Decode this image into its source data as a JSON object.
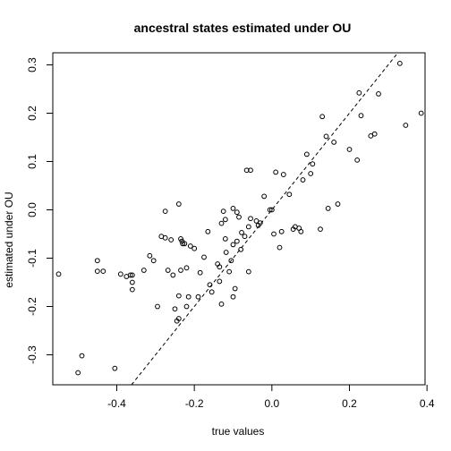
{
  "chart_data": {
    "type": "scatter",
    "title": "ancestral states estimated under OU",
    "xlabel": "true values",
    "ylabel": "estimated under OU",
    "xlim": [
      -0.565,
      0.395
    ],
    "ylim": [
      -0.362,
      0.325
    ],
    "xticks": [
      "-0.4",
      "-0.2",
      "0.0",
      "0.2",
      "0.4"
    ],
    "xtick_values": [
      -0.4,
      -0.2,
      0.0,
      0.2,
      0.4
    ],
    "yticks": [
      "-0.3",
      "-0.2",
      "-0.1",
      "0.0",
      "0.1",
      "0.2",
      "0.3"
    ],
    "ytick_values": [
      -0.3,
      -0.2,
      -0.1,
      0.0,
      0.1,
      0.2,
      0.3
    ],
    "grid": false,
    "reference_line": {
      "style": "dashed",
      "slope": 1,
      "intercept": 0
    },
    "points": [
      [
        -0.55,
        -0.133
      ],
      [
        -0.49,
        -0.302
      ],
      [
        -0.5,
        -0.337
      ],
      [
        -0.405,
        -0.328
      ],
      [
        -0.45,
        -0.105
      ],
      [
        -0.45,
        -0.127
      ],
      [
        -0.435,
        -0.127
      ],
      [
        -0.39,
        -0.133
      ],
      [
        -0.375,
        -0.138
      ],
      [
        -0.365,
        -0.135
      ],
      [
        -0.36,
        -0.15
      ],
      [
        -0.36,
        -0.165
      ],
      [
        -0.36,
        -0.135
      ],
      [
        -0.33,
        -0.125
      ],
      [
        -0.315,
        -0.095
      ],
      [
        -0.305,
        -0.105
      ],
      [
        -0.295,
        -0.2
      ],
      [
        -0.285,
        -0.055
      ],
      [
        -0.275,
        -0.058
      ],
      [
        -0.275,
        -0.003
      ],
      [
        -0.268,
        -0.125
      ],
      [
        -0.26,
        -0.062
      ],
      [
        -0.255,
        -0.135
      ],
      [
        -0.25,
        -0.205
      ],
      [
        -0.245,
        -0.23
      ],
      [
        -0.24,
        -0.225
      ],
      [
        -0.24,
        0.012
      ],
      [
        -0.24,
        -0.178
      ],
      [
        -0.235,
        -0.125
      ],
      [
        -0.235,
        -0.06
      ],
      [
        -0.232,
        -0.065
      ],
      [
        -0.23,
        -0.07
      ],
      [
        -0.225,
        -0.07
      ],
      [
        -0.22,
        -0.12
      ],
      [
        -0.22,
        -0.2
      ],
      [
        -0.215,
        -0.18
      ],
      [
        -0.21,
        -0.075
      ],
      [
        -0.2,
        -0.08
      ],
      [
        -0.19,
        -0.18
      ],
      [
        -0.185,
        -0.13
      ],
      [
        -0.175,
        -0.098
      ],
      [
        -0.165,
        -0.045
      ],
      [
        -0.16,
        -0.155
      ],
      [
        -0.155,
        -0.17
      ],
      [
        -0.14,
        -0.112
      ],
      [
        -0.135,
        -0.118
      ],
      [
        -0.135,
        -0.148
      ],
      [
        -0.13,
        -0.028
      ],
      [
        -0.13,
        -0.195
      ],
      [
        -0.125,
        -0.003
      ],
      [
        -0.12,
        -0.02
      ],
      [
        -0.12,
        -0.06
      ],
      [
        -0.118,
        -0.088
      ],
      [
        -0.11,
        -0.128
      ],
      [
        -0.105,
        -0.105
      ],
      [
        -0.1,
        -0.072
      ],
      [
        -0.095,
        -0.163
      ],
      [
        -0.09,
        -0.065
      ],
      [
        -0.1,
        -0.18
      ],
      [
        -0.1,
        0.003
      ],
      [
        -0.09,
        -0.005
      ],
      [
        -0.085,
        -0.015
      ],
      [
        -0.08,
        -0.082
      ],
      [
        -0.078,
        -0.047
      ],
      [
        -0.07,
        -0.055
      ],
      [
        -0.06,
        -0.035
      ],
      [
        -0.055,
        0.082
      ],
      [
        -0.065,
        0.082
      ],
      [
        -0.06,
        -0.128
      ],
      [
        -0.055,
        -0.018
      ],
      [
        -0.04,
        -0.023
      ],
      [
        -0.035,
        -0.032
      ],
      [
        -0.03,
        -0.027
      ],
      [
        -0.02,
        0.028
      ],
      [
        -0.005,
        0.0
      ],
      [
        0.0,
        0.0
      ],
      [
        0.005,
        -0.05
      ],
      [
        0.01,
        0.078
      ],
      [
        0.025,
        -0.045
      ],
      [
        0.02,
        -0.078
      ],
      [
        0.03,
        0.073
      ],
      [
        0.045,
        0.032
      ],
      [
        0.055,
        -0.04
      ],
      [
        0.06,
        -0.035
      ],
      [
        0.07,
        -0.038
      ],
      [
        0.075,
        -0.045
      ],
      [
        0.08,
        0.062
      ],
      [
        0.09,
        0.115
      ],
      [
        0.1,
        0.075
      ],
      [
        0.105,
        0.095
      ],
      [
        0.125,
        -0.04
      ],
      [
        0.13,
        0.193
      ],
      [
        0.14,
        0.152
      ],
      [
        0.145,
        0.003
      ],
      [
        0.16,
        0.14
      ],
      [
        0.17,
        0.012
      ],
      [
        0.2,
        0.125
      ],
      [
        0.22,
        0.103
      ],
      [
        0.225,
        0.242
      ],
      [
        0.23,
        0.195
      ],
      [
        0.255,
        0.153
      ],
      [
        0.265,
        0.157
      ],
      [
        0.275,
        0.24
      ],
      [
        0.33,
        0.303
      ],
      [
        0.345,
        0.175
      ],
      [
        0.385,
        0.2
      ]
    ]
  }
}
